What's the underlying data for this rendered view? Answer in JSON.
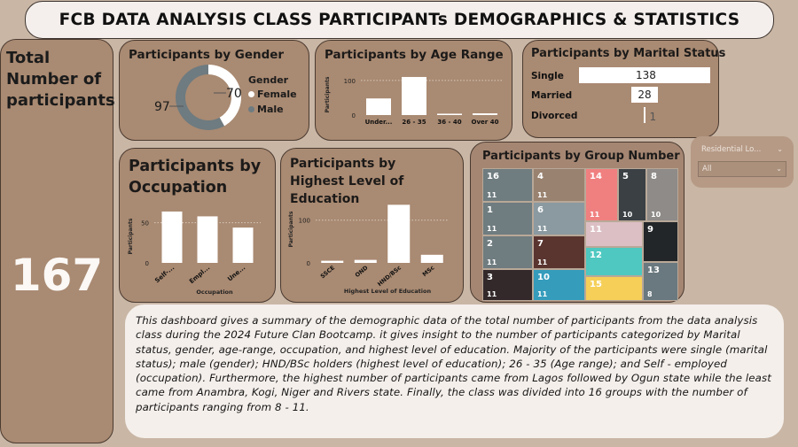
{
  "header": {
    "title": "FCB DATA ANALYSIS CLASS PARTICIPANTs DEMOGRAPHICS & STATISTICS"
  },
  "total": {
    "label": "Total Number of participants",
    "value": "167"
  },
  "gender": {
    "title": "Participants by Gender",
    "legend_title": "Gender",
    "chart_data": {
      "type": "pie",
      "categories": [
        "Female",
        "Male"
      ],
      "values": [
        70,
        97
      ],
      "colors": [
        "#ffffff",
        "#6e7b80"
      ]
    }
  },
  "age": {
    "title": "Participants by Age Range",
    "ylabel": "Participants",
    "chart_data": {
      "type": "bar",
      "categories": [
        "Under...",
        "26 - 35",
        "36 - 40",
        "Over 40"
      ],
      "values": [
        48,
        110,
        4,
        5
      ],
      "yticks": [
        0,
        100
      ],
      "ylim": [
        0,
        115
      ]
    }
  },
  "marital": {
    "title": "Participants by Marital Status",
    "chart_data": {
      "type": "bar",
      "categories": [
        "Single",
        "Married",
        "Divorced"
      ],
      "values": [
        138,
        28,
        1
      ]
    }
  },
  "occupation": {
    "title": "Participants by Occupation",
    "ylabel": "Participants",
    "xlabel": "Occupation",
    "chart_data": {
      "type": "bar",
      "categories": [
        "Self-...",
        "Empl...",
        "Une..."
      ],
      "values": [
        64,
        58,
        44
      ],
      "yticks": [
        0,
        50
      ],
      "ylim": [
        0,
        75
      ]
    }
  },
  "education": {
    "title": "Participants by Highest Level of Education",
    "ylabel": "Participants",
    "xlabel": "Highest Level of Education",
    "chart_data": {
      "type": "bar",
      "categories": [
        "SSCE",
        "OND",
        "HND/BSc",
        "MSc"
      ],
      "values": [
        5,
        7,
        136,
        19
      ],
      "yticks": [
        0,
        100
      ],
      "ylim": [
        0,
        145
      ]
    }
  },
  "groups": {
    "title": "Participants by Group Number",
    "tiles": [
      {
        "group": "16",
        "count": "11",
        "color": "#6f7c80"
      },
      {
        "group": "1",
        "count": "11",
        "color": "#6f7c80"
      },
      {
        "group": "2",
        "count": "11",
        "color": "#6f7c80"
      },
      {
        "group": "3",
        "count": "11",
        "color": "#33292a"
      },
      {
        "group": "4",
        "count": "11",
        "color": "#99826f"
      },
      {
        "group": "6",
        "count": "11",
        "color": "#8b9aa1"
      },
      {
        "group": "7",
        "count": "11",
        "color": "#5a3530"
      },
      {
        "group": "10",
        "count": "11",
        "color": "#359cbc"
      },
      {
        "group": "14",
        "count": "11",
        "color": "#f08080"
      },
      {
        "group": "5",
        "count": "10",
        "color": "#3a4044"
      },
      {
        "group": "8",
        "count": "10",
        "color": "#8e8b88"
      },
      {
        "group": "11",
        "count": "",
        "color": "#dcbfc4"
      },
      {
        "group": "9",
        "count": "",
        "color": "#232629"
      },
      {
        "group": "12",
        "count": "",
        "color": "#4ec8c0"
      },
      {
        "group": "13",
        "count": "8",
        "color": "#6a797f"
      },
      {
        "group": "15",
        "count": "",
        "color": "#f5cf58"
      }
    ]
  },
  "slicer": {
    "title": "Residential Lo...",
    "value": "All"
  },
  "summary": {
    "text": "This dashboard gives a summary of the demographic data of the total number of participants from the data analysis class during the 2024 Future Clan Bootcamp. it gives insight to the number of participants categorized by Marital status, gender, age-range, occupation, and highest level of education. Majority of the participants were single (marital status); male (gender); HND/BSc holders (highest level of education); 26 - 35 (Age range); and Self - employed (occupation). Furthermore, the highest number of participants came from Lagos followed by Ogun state while the least came from Anambra, Kogi, Niger and Rivers state. Finally, the class was divided into 16 groups with the number of participants ranging from 8 - 11."
  }
}
